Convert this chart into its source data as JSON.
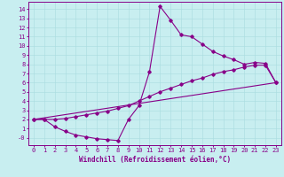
{
  "bg_color": "#c8eef0",
  "line_color": "#880088",
  "grid_color": "#a8dcdf",
  "xlabel": "Windchill (Refroidissement éolien,°C)",
  "xlim": [
    -0.5,
    23.5
  ],
  "ylim": [
    -0.8,
    14.8
  ],
  "xticks": [
    0,
    1,
    2,
    3,
    4,
    5,
    6,
    7,
    8,
    9,
    10,
    11,
    12,
    13,
    14,
    15,
    16,
    17,
    18,
    19,
    20,
    21,
    22,
    23
  ],
  "yticks": [
    0,
    1,
    2,
    3,
    4,
    5,
    6,
    7,
    8,
    9,
    10,
    11,
    12,
    13,
    14
  ],
  "ytick_labels": [
    "-0",
    "1",
    "2",
    "3",
    "4",
    "5",
    "6",
    "7",
    "8",
    "9",
    "10",
    "11",
    "12",
    "13",
    "14"
  ],
  "curve1_x": [
    0,
    1,
    2,
    3,
    4,
    5,
    6,
    7,
    8,
    9,
    10,
    11,
    12,
    13,
    14,
    15,
    16,
    17,
    18,
    19,
    20,
    21,
    22,
    23
  ],
  "curve1_y": [
    2.0,
    2.0,
    1.2,
    0.7,
    0.3,
    0.1,
    -0.1,
    -0.2,
    -0.3,
    2.0,
    3.5,
    7.2,
    14.3,
    12.8,
    11.2,
    11.0,
    10.2,
    9.4,
    8.9,
    8.5,
    8.0,
    8.2,
    8.1,
    6.0
  ],
  "curve2_x": [
    0,
    1,
    2,
    3,
    4,
    5,
    6,
    7,
    8,
    9,
    10,
    11,
    12,
    13,
    14,
    15,
    16,
    17,
    18,
    19,
    20,
    21,
    22,
    23
  ],
  "curve2_y": [
    2.0,
    2.0,
    2.0,
    2.1,
    2.3,
    2.5,
    2.7,
    2.9,
    3.2,
    3.5,
    4.0,
    4.5,
    5.0,
    5.4,
    5.8,
    6.2,
    6.5,
    6.9,
    7.2,
    7.4,
    7.7,
    7.9,
    7.9,
    6.0
  ],
  "line3_x": [
    0,
    23
  ],
  "line3_y": [
    2.0,
    6.0
  ],
  "marker_style": "D",
  "marker_size": 1.8,
  "line_width": 0.8,
  "tick_fontsize": 5.0,
  "xlabel_fontsize": 5.5
}
